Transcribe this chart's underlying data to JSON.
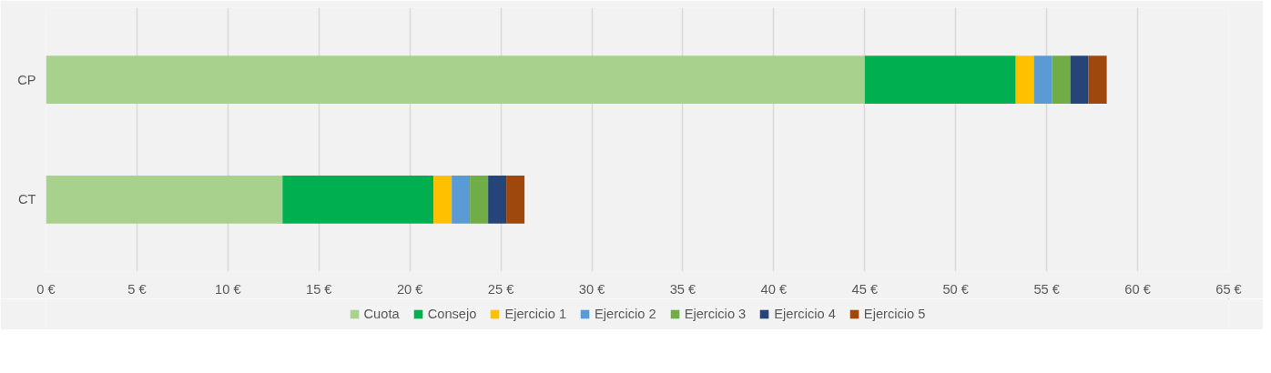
{
  "chart_data": {
    "type": "bar",
    "orientation": "horizontal",
    "stacked": true,
    "categories": [
      "CP",
      "CT"
    ],
    "series": [
      {
        "name": "Cuota",
        "color": "#a9d18e",
        "values": [
          45,
          13
        ]
      },
      {
        "name": "Consejo",
        "color": "#00b050",
        "values": [
          8.3,
          8.3
        ]
      },
      {
        "name": "Ejercicio 1",
        "color": "#ffc000",
        "values": [
          1,
          1
        ]
      },
      {
        "name": "Ejercicio 2",
        "color": "#5b9bd5",
        "values": [
          1,
          1
        ]
      },
      {
        "name": "Ejercicio 3",
        "color": "#70ad47",
        "values": [
          1,
          1
        ]
      },
      {
        "name": "Ejercicio 4",
        "color": "#264478",
        "values": [
          1,
          1
        ]
      },
      {
        "name": "Ejercicio 5",
        "color": "#9e480e",
        "values": [
          1,
          1
        ]
      }
    ],
    "xlim": [
      0,
      65
    ],
    "xticks": [
      {
        "value": 0,
        "label": "0 €"
      },
      {
        "value": 5,
        "label": "5 €"
      },
      {
        "value": 10,
        "label": "10 €"
      },
      {
        "value": 15,
        "label": "15 €"
      },
      {
        "value": 20,
        "label": "20 €"
      },
      {
        "value": 25,
        "label": "25 €"
      },
      {
        "value": 30,
        "label": "30 €"
      },
      {
        "value": 35,
        "label": "35 €"
      },
      {
        "value": 40,
        "label": "40 €"
      },
      {
        "value": 45,
        "label": "45 €"
      },
      {
        "value": 50,
        "label": "50 €"
      },
      {
        "value": 55,
        "label": "55 €"
      },
      {
        "value": 60,
        "label": "60 €"
      },
      {
        "value": 65,
        "label": "65 €"
      }
    ],
    "grid": "x",
    "legend": "bottom"
  }
}
